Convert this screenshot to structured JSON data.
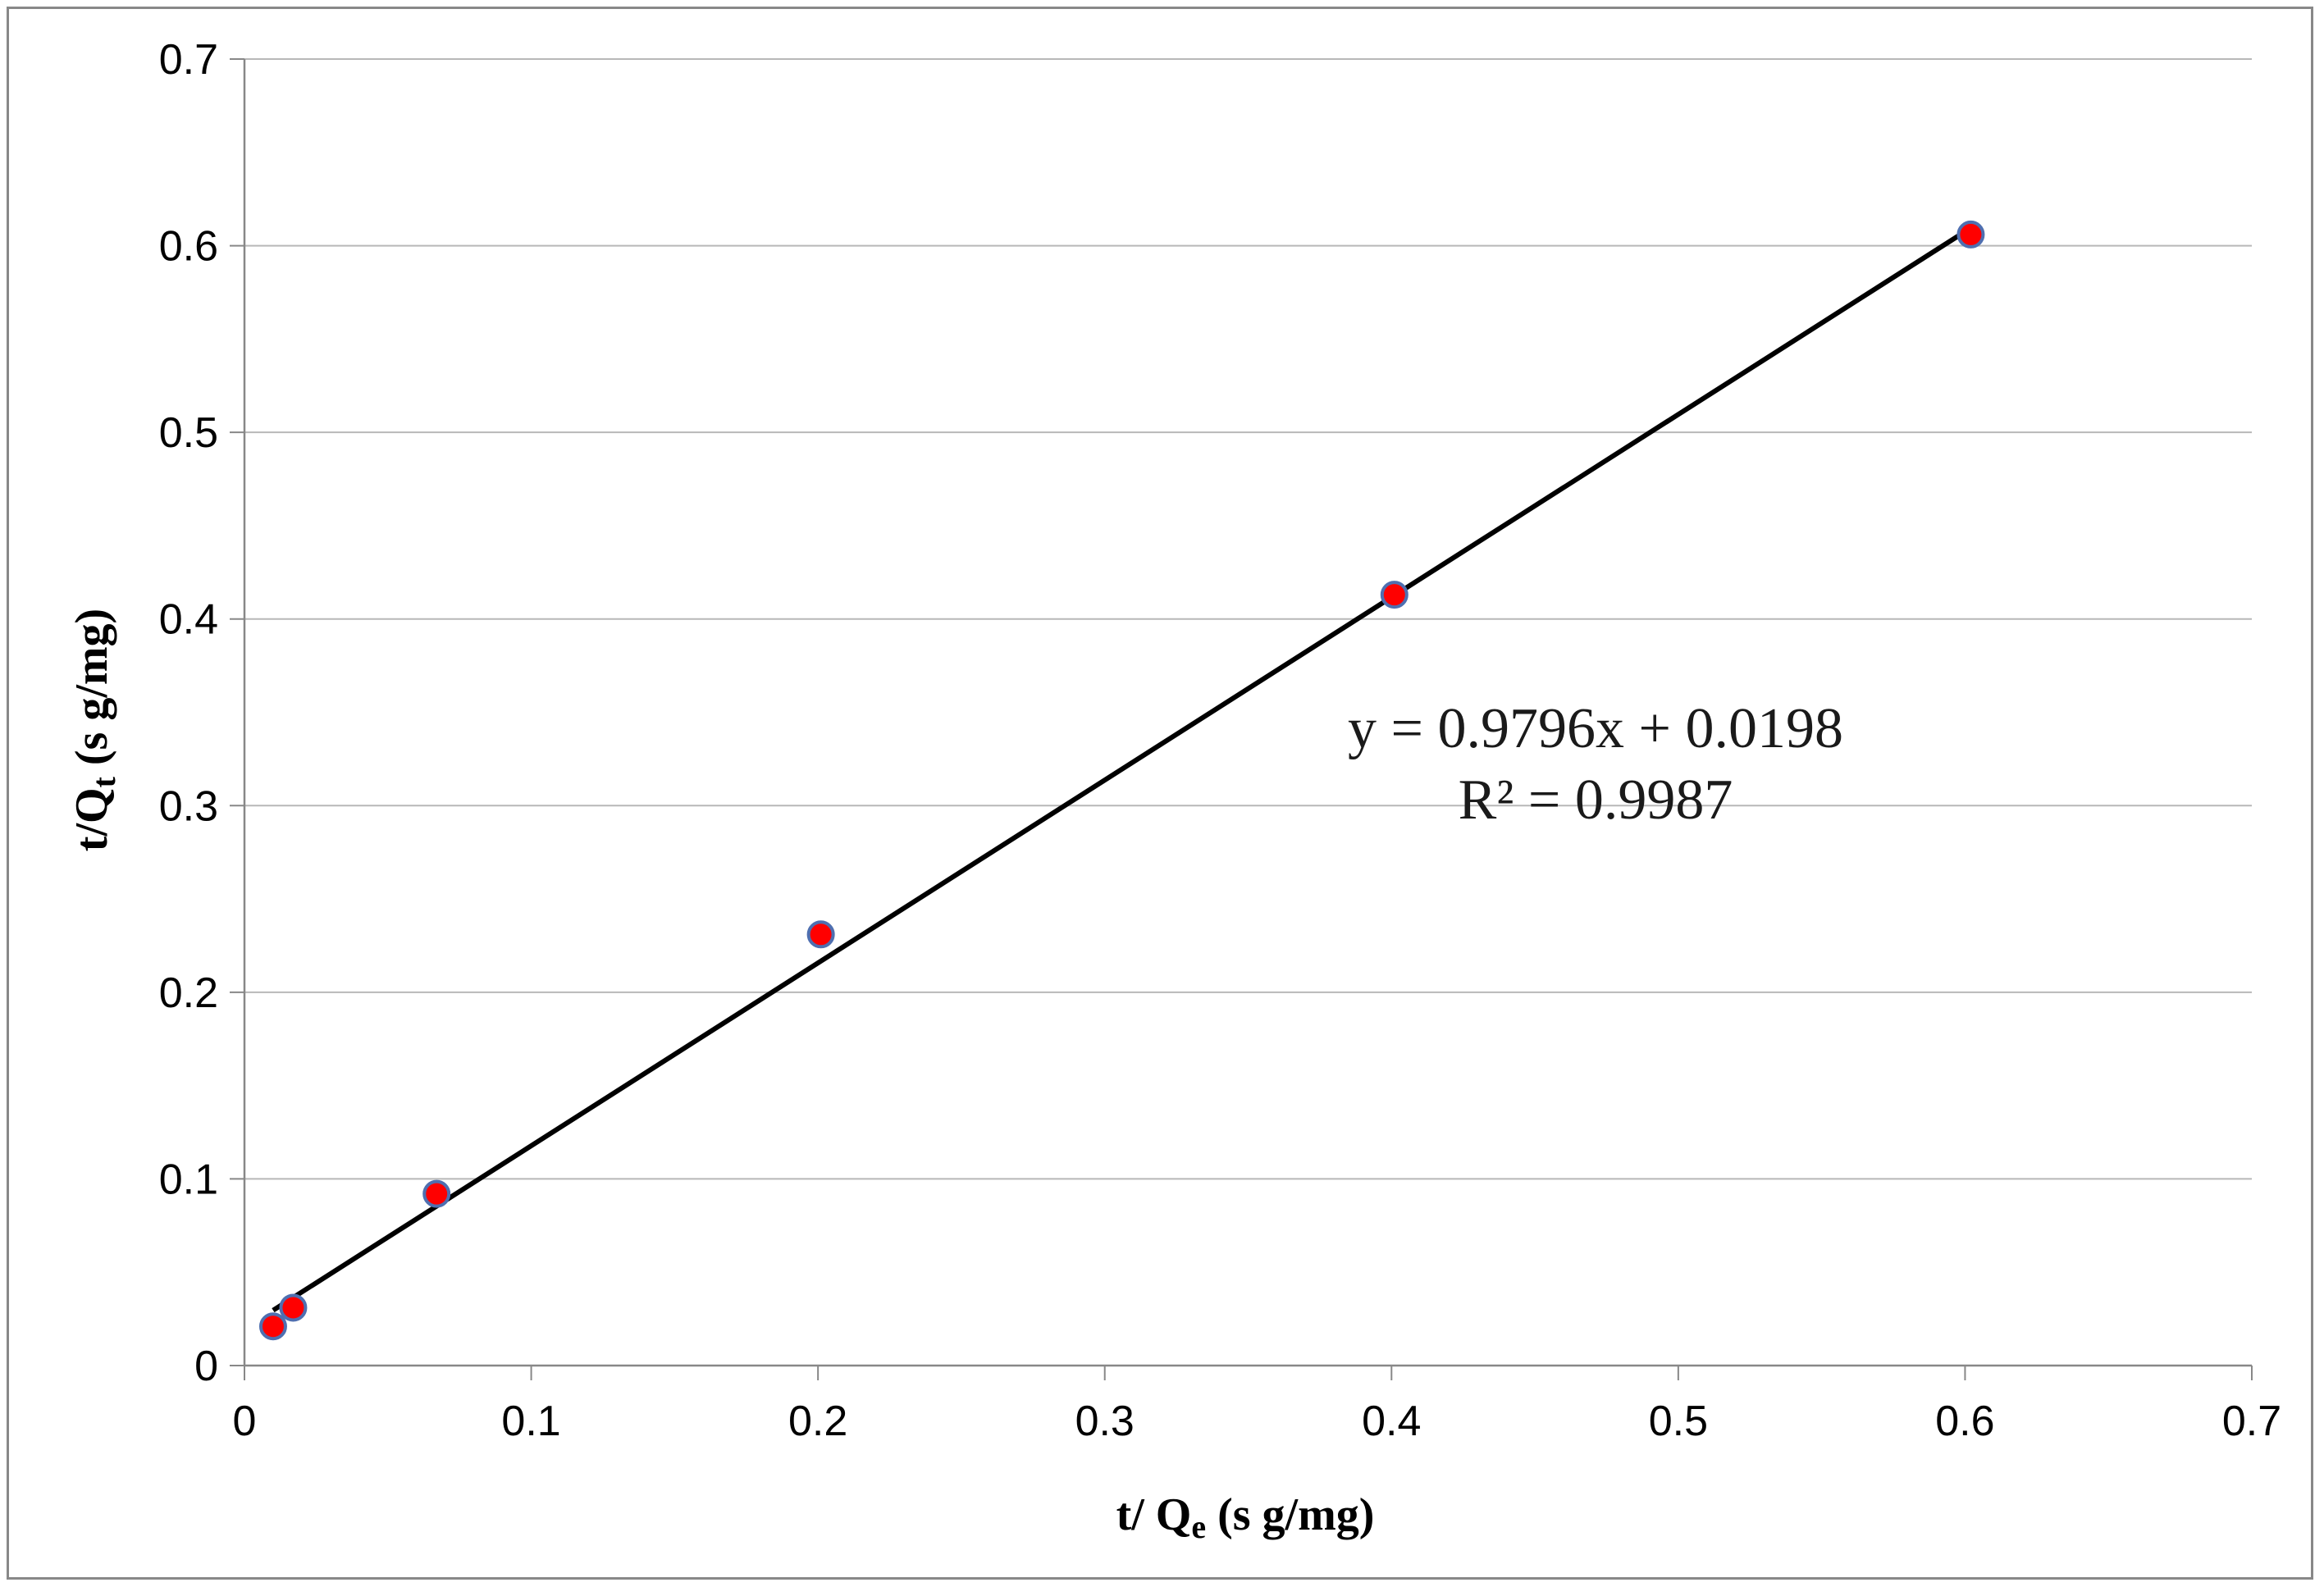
{
  "chart_data": {
    "type": "scatter",
    "title": "",
    "xlabel": {
      "main": "t/ Q",
      "sub": "e",
      "rest": " (s g/mg)"
    },
    "ylabel": {
      "main": "t/Q",
      "sub": "t",
      "rest": "  (s g/mg)"
    },
    "xlim": [
      0,
      0.7
    ],
    "ylim": [
      0,
      0.7
    ],
    "x_ticks": [
      "0",
      "0.1",
      "0.2",
      "0.3",
      "0.4",
      "0.5",
      "0.6",
      "0.7"
    ],
    "y_ticks": [
      "0",
      "0.1",
      "0.2",
      "0.3",
      "0.4",
      "0.5",
      "0.6",
      "0.7"
    ],
    "grid": "horizontal",
    "legend": "none",
    "series": [
      {
        "points": [
          {
            "x": 0.01,
            "y": 0.021
          },
          {
            "x": 0.017,
            "y": 0.031
          },
          {
            "x": 0.067,
            "y": 0.092
          },
          {
            "x": 0.201,
            "y": 0.231
          },
          {
            "x": 0.401,
            "y": 0.413
          },
          {
            "x": 0.602,
            "y": 0.606
          }
        ],
        "marker_fill": "#ff0000",
        "marker_edge": "#4f6fb0"
      }
    ],
    "trendline": {
      "slope": 0.9796,
      "intercept": 0.0198,
      "x_range": [
        0.01,
        0.602
      ],
      "color": "#000000"
    },
    "annotations": {
      "equation": "y = 0.9796x + 0.0198",
      "r_squared": "R² = 0.9987"
    }
  }
}
